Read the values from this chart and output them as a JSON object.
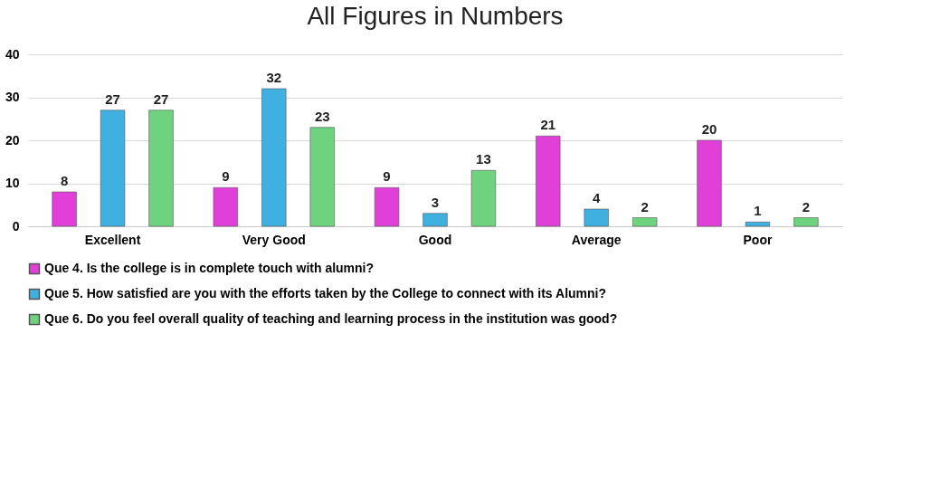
{
  "chart_data": {
    "type": "bar",
    "title": "All Figures in Numbers",
    "categories": [
      "Excellent",
      "Very Good",
      "Good",
      "Average",
      "Poor"
    ],
    "series": [
      {
        "name": "Que 4. Is the college is in complete touch with alumni?",
        "color": "#e040d8",
        "values": [
          8,
          9,
          9,
          21,
          20
        ]
      },
      {
        "name": "Que 5. How satisfied are you with the efforts taken by the College to connect with its Alumni?",
        "color": "#3fb0e0",
        "values": [
          27,
          32,
          3,
          4,
          1
        ]
      },
      {
        "name": "Que 6.  Do you feel overall quality of teaching and learning process in the institution was good?",
        "color": "#6fd27f",
        "values": [
          27,
          23,
          13,
          2,
          2
        ]
      }
    ],
    "ylim": [
      0,
      40
    ],
    "yticks": [
      0,
      10,
      20,
      30,
      40
    ],
    "grid": "y",
    "legend": "bottom",
    "data_labels": true
  }
}
